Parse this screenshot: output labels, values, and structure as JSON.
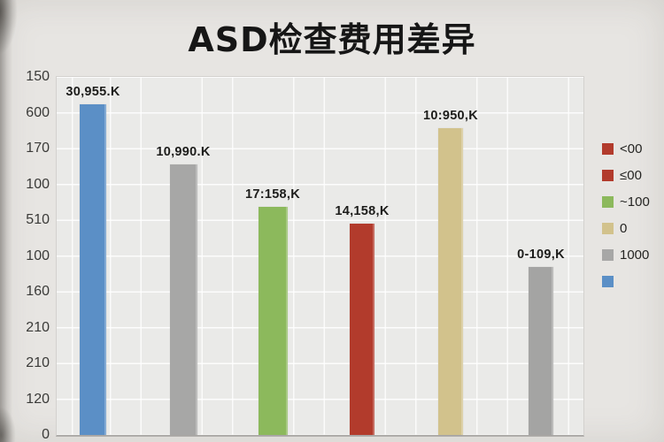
{
  "title": "ASD检查费用差异",
  "chart_data": {
    "type": "bar",
    "title": "ASD检查费用差异",
    "xlabel": "",
    "ylabel": "",
    "grid": true,
    "y_tick_labels": [
      "150",
      "600",
      "170",
      "100",
      "510",
      "100",
      "160",
      "210",
      "210",
      "120",
      "0"
    ],
    "x_tick_labels": [],
    "bars": [
      {
        "data_label": "30,955.K",
        "color": "#5b8fc6",
        "height_frac": 0.923
      },
      {
        "data_label": "10,990.K",
        "color": "#a7a7a6",
        "height_frac": 0.755
      },
      {
        "data_label": "17:158,K",
        "color": "#8cb95c",
        "height_frac": 0.636
      },
      {
        "data_label": "14,158,K",
        "color": "#b23b2c",
        "height_frac": 0.589
      },
      {
        "data_label": "10:950,K",
        "color": "#d2c28c",
        "height_frac": 0.856
      },
      {
        "data_label": "0-109,K",
        "color": "#a4a4a3",
        "height_frac": 0.47
      }
    ],
    "legend": {
      "position": "right",
      "items": [
        {
          "label": "<00",
          "color": "#b23b2c"
        },
        {
          "label": "≤00",
          "color": "#b23b2c"
        },
        {
          "label": "~100",
          "color": "#8cb95c"
        },
        {
          "label": "0",
          "color": "#d2c28c"
        },
        {
          "label": "1000",
          "color": "#a7a7a6"
        },
        {
          "label": "",
          "color": "#5b8fc6"
        }
      ]
    }
  }
}
